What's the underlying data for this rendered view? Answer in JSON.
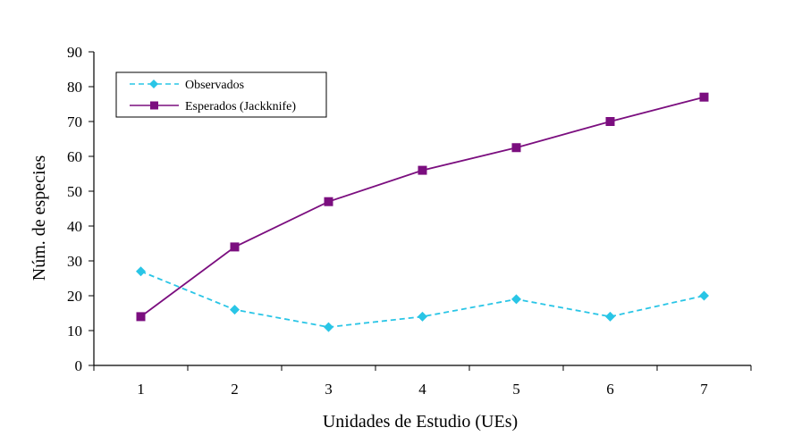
{
  "chart_data": {
    "type": "line",
    "title": "",
    "xlabel": "Unidades de Estudio (UEs)",
    "ylabel": "Núm. de especies",
    "categories": [
      "1",
      "2",
      "3",
      "4",
      "5",
      "6",
      "7"
    ],
    "ylim": [
      0,
      90
    ],
    "yticks": [
      0,
      10,
      20,
      30,
      40,
      50,
      60,
      70,
      80,
      90
    ],
    "grid": false,
    "legend_position": "top-left",
    "series": [
      {
        "name": "Observados",
        "values": [
          27,
          16,
          11,
          14,
          19,
          14,
          20
        ],
        "color": "#29C5E6",
        "marker": "diamond",
        "dash": "dashed"
      },
      {
        "name": "Esperados (Jackknife)",
        "values": [
          14,
          34,
          47,
          56,
          62.5,
          70,
          77
        ],
        "color": "#7B0E7F",
        "marker": "square",
        "dash": "solid"
      }
    ]
  }
}
